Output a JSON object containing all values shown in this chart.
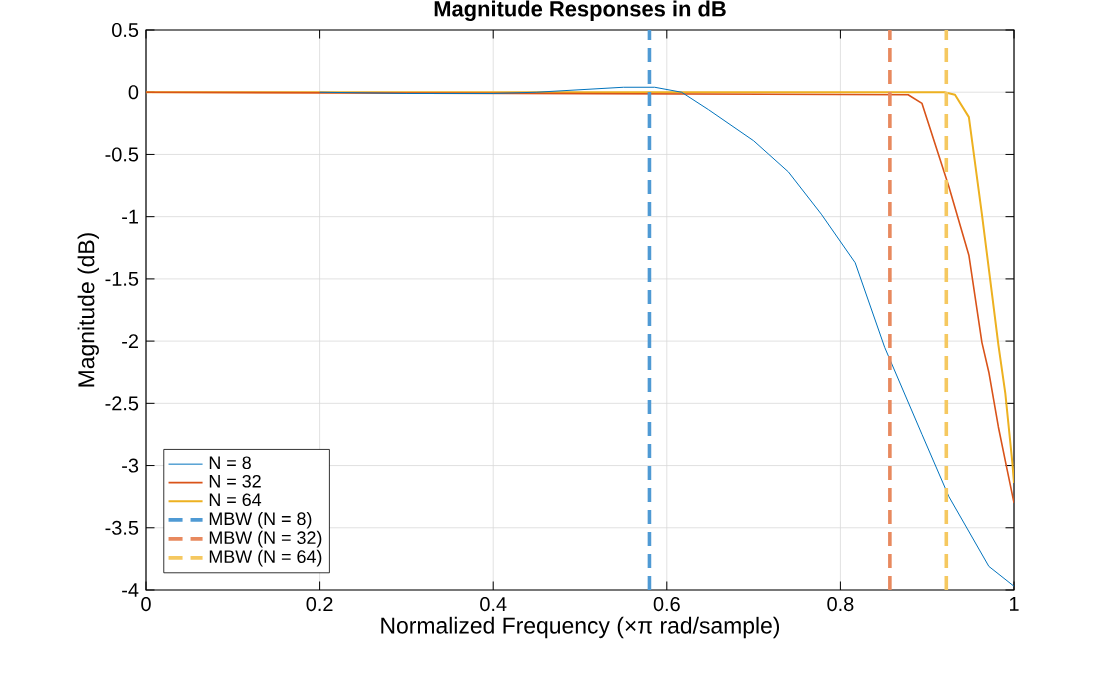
{
  "chart_data": {
    "type": "line",
    "title": "Magnitude Responses in dB",
    "xlabel": "Normalized Frequency  (×π  rad/sample)",
    "ylabel": "Magnitude (dB)",
    "xlim": [
      0,
      1
    ],
    "ylim": [
      -4,
      0.5
    ],
    "xticks": [
      0,
      0.2,
      0.4,
      0.6,
      0.8,
      1
    ],
    "yticks": [
      -4,
      -3.5,
      -3,
      -2.5,
      -2,
      -1.5,
      -1,
      -0.5,
      0,
      0.5
    ],
    "grid": true,
    "legend": "bottom left",
    "line_style": "solid",
    "series": [
      {
        "name": "N = 8",
        "color": "#0072bd",
        "x": [
          0.2,
          0.3,
          0.4,
          0.45,
          0.5,
          0.55,
          0.586,
          0.617,
          0.648,
          0.7,
          0.74,
          0.778,
          0.817,
          0.851,
          0.894,
          0.925,
          0.971,
          1
        ],
        "values": [
          0,
          -0.01,
          -0.01,
          0,
          0.02,
          0.04,
          0.04,
          0,
          -0.14,
          -0.39,
          -0.64,
          -0.98,
          -1.37,
          -2.05,
          -2.75,
          -3.25,
          -3.81,
          -3.97
        ]
      },
      {
        "name": "N = 32",
        "color": "#d95319",
        "x": [
          0,
          0.878,
          0.894,
          0.925,
          0.948,
          0.963,
          0.971,
          0.982,
          0.992,
          1
        ],
        "values": [
          0,
          -0.02,
          -0.09,
          -0.76,
          -1.31,
          -2.01,
          -2.25,
          -2.69,
          -3.03,
          -3.3
        ]
      },
      {
        "name": "N = 64",
        "color": "#edb120",
        "x": [
          0,
          0.92,
          0.932,
          0.948,
          0.963,
          0.975,
          0.982,
          0.99,
          0.998,
          1
        ],
        "values": [
          0,
          0,
          -0.02,
          -0.2,
          -0.98,
          -1.64,
          -2.03,
          -2.42,
          -2.97,
          -3.14
        ]
      },
      {
        "name": "MBW (N = 8)",
        "color": "#4f9ad4",
        "line_style": "dashed",
        "x": [
          0.58,
          0.58
        ],
        "values": [
          -4,
          0.5
        ]
      },
      {
        "name": "MBW (N = 32)",
        "color": "#e8895e",
        "line_style": "dashed",
        "x": [
          0.857,
          0.857
        ],
        "values": [
          -4,
          0.5
        ]
      },
      {
        "name": "MBW (N = 64)",
        "color": "#f5c860",
        "line_style": "dashed",
        "x": [
          0.922,
          0.922
        ],
        "values": [
          -4,
          0.5
        ]
      }
    ]
  }
}
